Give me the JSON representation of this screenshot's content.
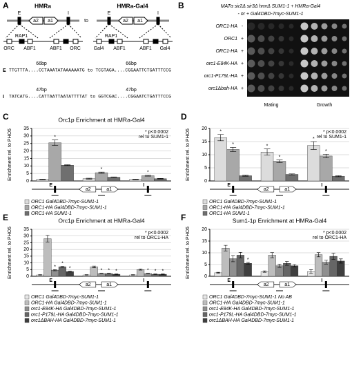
{
  "panel_a": {
    "label": "A",
    "left_title": "HMRa",
    "right_title": "HMRa-Gal4",
    "to": "to",
    "locus": [
      "E",
      "a2",
      "a1",
      "I"
    ],
    "left_sites": [
      "RAP1",
      "ORC",
      "ABF1",
      "ABF1",
      "ORC"
    ],
    "right_sites": [
      "RAP1",
      "Gal4",
      "ABF1",
      "ABF1",
      "Gal4"
    ],
    "sequences": [
      {
        "name": "E",
        "lengths": [
          "66bp",
          "66bp"
        ],
        "text": "TTGTTTA....CCTAAATATAAAAAATG  to  TCGTAGA....CGGAATTCTGATTTCCG"
      },
      {
        "name": "I",
        "lengths": [
          "47bp",
          "47bp"
        ],
        "text": "TATCATG....CATTAATTAATATTTTAT  to  GGTCGAC....CGGAATCTGATTTCCG"
      }
    ]
  },
  "panel_b": {
    "label": "B",
    "heading": "MATα sir2Δ sir3Δ hmrΔ SUM1-1 + HMRa-Gal4",
    "subheading": "- or + Gal4DBD-7myc-SUM1-1",
    "rows": [
      {
        "strain": "ORC1-HA",
        "sign": "-"
      },
      {
        "strain": "ORC1",
        "sign": "+"
      },
      {
        "strain": "ORC1-HA",
        "sign": "+"
      },
      {
        "strain": "orc1-E84K-HA",
        "sign": "+"
      },
      {
        "strain": "orc1-P179L-HA",
        "sign": "+"
      },
      {
        "strain": "orc1Δbah-HA",
        "sign": "+"
      }
    ],
    "columns": [
      "Mating",
      "Growth"
    ]
  },
  "chart_data": [
    {
      "type": "bar",
      "panel": "C",
      "title": "Orc1p Enrichment at HMRa-Gal4",
      "y_label": "Enrichment rel. to PHO5",
      "note": [
        "* p<0.0002",
        "rel to SUM1-1"
      ],
      "categories": [
        null,
        null,
        null
      ],
      "locus": [
        "E",
        "a2",
        "a1",
        "I"
      ],
      "ylim": [
        0,
        35
      ],
      "yticks": [
        0,
        5,
        10,
        15,
        20,
        25,
        30,
        35
      ],
      "grid": true,
      "series": [
        {
          "name": "ORC1 Gal4DBD-7myc-SUM1-1",
          "color": "#dcdcdc",
          "values": [
            1,
            1.5,
            1
          ],
          "errors": [
            0.2,
            0.3,
            0.2
          ],
          "marks": [
            null,
            null,
            null
          ]
        },
        {
          "name": "ORC1-HA Gal4DBD-7myc-SUM1-1",
          "color": "#a8a8a8",
          "values": [
            25.5,
            5.5,
            3.5
          ],
          "errors": [
            1.8,
            0.4,
            0.3
          ],
          "marks": [
            "*",
            "*",
            "*"
          ]
        },
        {
          "name": "ORC1-HA SUM1-1",
          "color": "#6f6f6f",
          "values": [
            10.5,
            2.5,
            1.5
          ],
          "errors": [
            0.3,
            0.2,
            0.2
          ],
          "marks": [
            null,
            null,
            null
          ]
        }
      ]
    },
    {
      "type": "bar",
      "panel": "D",
      "y_label": "Enrichment rel. to PHO5",
      "note": [
        "* p<0.0002",
        "rel to SUM1-1"
      ],
      "categories": [
        null,
        null,
        null
      ],
      "locus": [
        "E",
        "a2",
        "a1",
        "I"
      ],
      "ylim": [
        0,
        20
      ],
      "yticks": [
        0,
        5,
        10,
        15,
        20
      ],
      "grid": true,
      "series": [
        {
          "name": "ORC1 Gal4DBD-7myc-SUM1-1",
          "color": "#dcdcdc",
          "values": [
            16.5,
            11,
            13.5
          ],
          "errors": [
            1.2,
            1.2,
            1.5
          ],
          "marks": [
            "*",
            "*",
            "*"
          ]
        },
        {
          "name": "ORC1-HA Gal4DBD-7myc-SUM1-1",
          "color": "#a8a8a8",
          "values": [
            12,
            7.5,
            9.5
          ],
          "errors": [
            0.8,
            0.5,
            0.7
          ],
          "marks": [
            "*",
            "*",
            "*"
          ]
        },
        {
          "name": "ORC1-HA SUM1-1",
          "color": "#6f6f6f",
          "values": [
            2,
            2.5,
            1.8
          ],
          "errors": [
            0.2,
            0.2,
            0.2
          ],
          "marks": [
            null,
            null,
            null
          ]
        }
      ]
    },
    {
      "type": "bar",
      "panel": "E",
      "title": "Orc1p Enrichment at HMRa-Gal4",
      "y_label": "Enrichment rel. to PHO5",
      "note": [
        "* p<0.0002",
        "rel to ORC1-HA"
      ],
      "categories": [
        null,
        null,
        null
      ],
      "locus": [
        "E",
        "a2",
        "a1",
        "I"
      ],
      "ylim": [
        0,
        35
      ],
      "yticks": [
        0,
        5,
        10,
        15,
        20,
        25,
        30,
        35
      ],
      "grid": true,
      "series": [
        {
          "name": "ORC1 Gal4DBD-7myc-SUM1-1",
          "color": "#e6e6e6",
          "values": [
            1,
            1,
            1
          ],
          "errors": [
            0.2,
            0.2,
            0.2
          ],
          "marks": [
            null,
            null,
            null
          ]
        },
        {
          "name": "ORC1-HA Gal4DBD-7myc-SUM1-1",
          "color": "#bdbdbd",
          "values": [
            28,
            7,
            5
          ],
          "errors": [
            2.5,
            0.6,
            0.4
          ],
          "marks": [
            null,
            null,
            null
          ]
        },
        {
          "name": "orc1-E84K-HA Gal4DBD-7myc-SUM1-1",
          "color": "#8f8f8f",
          "values": [
            4.5,
            2,
            2
          ],
          "errors": [
            0.4,
            0.2,
            0.2
          ],
          "marks": [
            "*",
            "*",
            "*"
          ]
        },
        {
          "name": "orc1-P179L-HA Gal4DBD-7myc-SUM1-1",
          "color": "#666666",
          "values": [
            7,
            2,
            1.5
          ],
          "errors": [
            0.3,
            0.2,
            0.2
          ],
          "marks": [
            "*",
            "*",
            "*"
          ]
        },
        {
          "name": "orc1ΔBAH-HA Gal4DBD-7myc-SUM1-1",
          "color": "#3f3f3f",
          "values": [
            3.5,
            1.5,
            1.5
          ],
          "errors": [
            0.3,
            0.2,
            0.2
          ],
          "marks": [
            "*",
            "*",
            "*"
          ]
        }
      ]
    },
    {
      "type": "bar",
      "panel": "F",
      "title": "Sum1-1p Enrichment at HMRa-Gal4",
      "y_label": "Enrichment rel. to PHO5",
      "note": [
        "* p<0.0002",
        "rel to ORC1-HA"
      ],
      "categories": [
        null,
        null,
        null
      ],
      "locus": [
        "E",
        "a2",
        "a1",
        "I"
      ],
      "ylim": [
        0,
        20
      ],
      "yticks": [
        0,
        5,
        10,
        15,
        20
      ],
      "grid": true,
      "series": [
        {
          "name": "ORC1 Gal4DBD-7myc-SUM1-1 No AB",
          "color": "#e6e6e6",
          "values": [
            1.5,
            2,
            2
          ],
          "errors": [
            0.2,
            0.3,
            0.8
          ],
          "marks": [
            null,
            null,
            null
          ]
        },
        {
          "name": "ORC1-HA Gal4DBD-7myc-SUM1-1",
          "color": "#bdbdbd",
          "values": [
            12,
            9,
            9.2
          ],
          "errors": [
            1.2,
            1.1,
            0.9
          ],
          "marks": [
            null,
            null,
            null
          ]
        },
        {
          "name": "orc1-E84K-HA Gal4DBD-7myc-SUM1-1",
          "color": "#8f8f8f",
          "values": [
            7.5,
            4.5,
            6
          ],
          "errors": [
            1.3,
            0.7,
            0.8
          ],
          "marks": [
            null,
            null,
            null
          ]
        },
        {
          "name": "orc1-P179L-HA Gal4DBD-7myc-SUM1-1",
          "color": "#666666",
          "values": [
            9,
            5.5,
            8.5
          ],
          "errors": [
            1.2,
            0.8,
            1.3
          ],
          "marks": [
            null,
            null,
            null
          ]
        },
        {
          "name": "orc1ΔBAH-HA Gal4DBD-7myc-SUM1-1",
          "color": "#3f3f3f",
          "values": [
            5.5,
            4.5,
            6.5
          ],
          "errors": [
            0.4,
            0.5,
            0.9
          ],
          "marks": [
            "*",
            null,
            null
          ]
        }
      ]
    }
  ]
}
